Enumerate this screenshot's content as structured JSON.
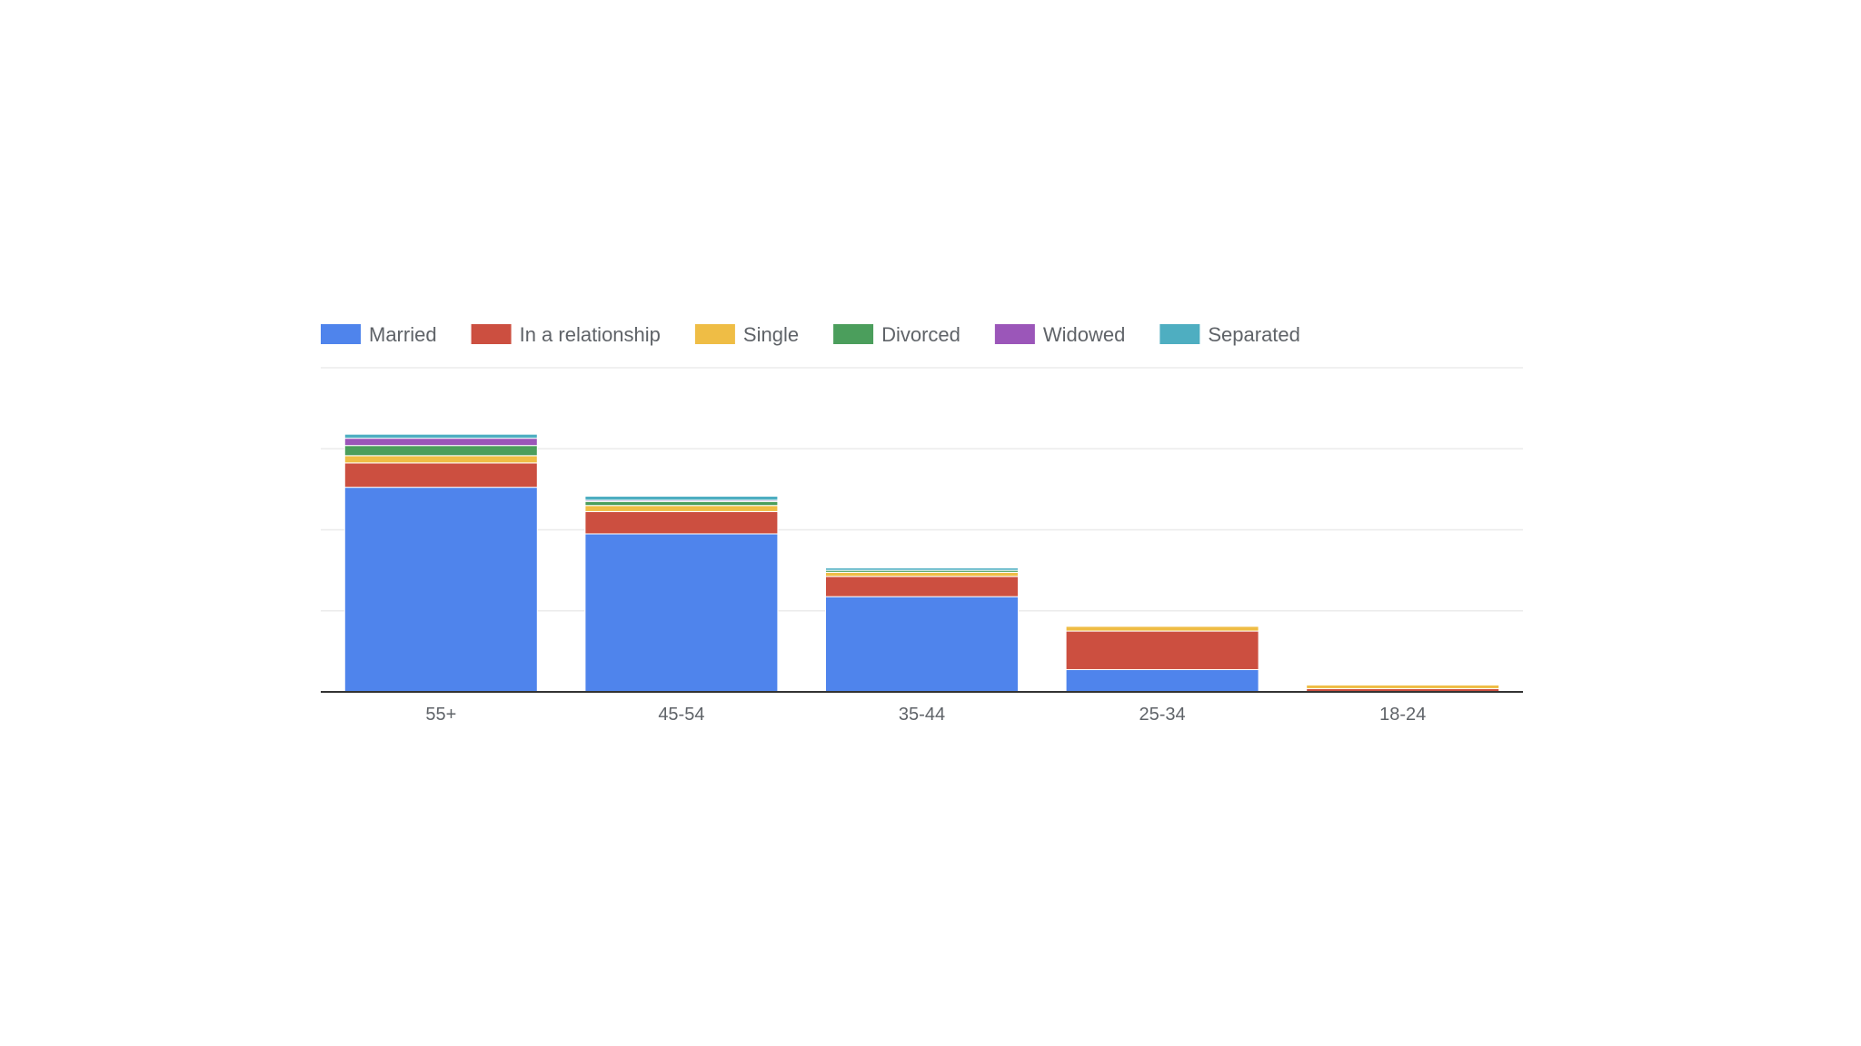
{
  "chart_data": {
    "type": "bar",
    "stacked": true,
    "categories": [
      "55+",
      "45-54",
      "35-44",
      "25-34",
      "18-24"
    ],
    "series": [
      {
        "name": "Married",
        "color": "#4f84ec",
        "values": [
          50.5,
          39,
          23.5,
          5.5,
          0
        ]
      },
      {
        "name": "In a relationship",
        "color": "#cc4f40",
        "values": [
          6,
          5.5,
          5,
          9.5,
          0.8
        ]
      },
      {
        "name": "Single",
        "color": "#efbd45",
        "values": [
          1.8,
          1.5,
          1,
          1.2,
          0.9
        ]
      },
      {
        "name": "Divorced",
        "color": "#4b9e5c",
        "values": [
          2.5,
          1,
          0.5,
          0.2,
          0
        ]
      },
      {
        "name": "Widowed",
        "color": "#9b56b9",
        "values": [
          1.8,
          0.3,
          0,
          0,
          0
        ]
      },
      {
        "name": "Separated",
        "color": "#4eaec1",
        "values": [
          1,
          1,
          0.6,
          0.1,
          0
        ]
      }
    ],
    "ylim": [
      0,
      80
    ],
    "gridlines": [
      20,
      40,
      60,
      80
    ],
    "grid": true,
    "legend_position": "top-left",
    "title": "",
    "xlabel": "",
    "ylabel": ""
  }
}
